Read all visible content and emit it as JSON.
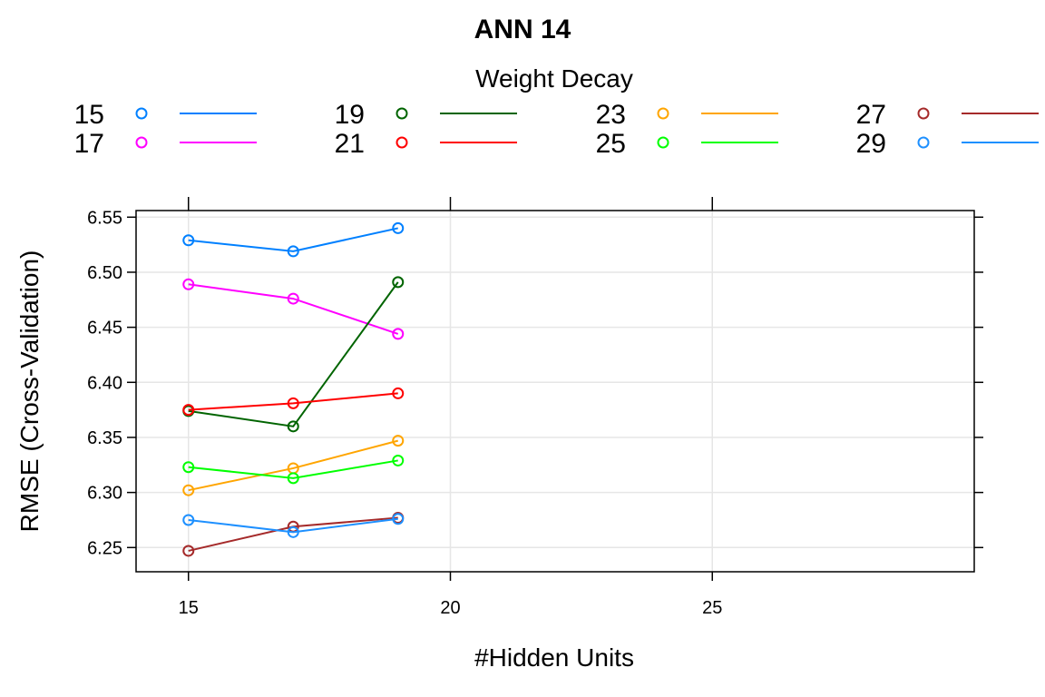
{
  "chart_data": {
    "type": "line",
    "title": "ANN 14",
    "xlabel": "#Hidden Units",
    "ylabel": "RMSE (Cross-Validation)",
    "legend_title": "Weight Decay",
    "legend_position": "top",
    "grid": true,
    "xlim": [
      14,
      30
    ],
    "ylim": [
      6.228,
      6.556
    ],
    "x_ticks": [
      "15",
      "20",
      "25"
    ],
    "y_ticks": [
      "6.25",
      "6.30",
      "6.35",
      "6.40",
      "6.45",
      "6.50",
      "6.55"
    ],
    "x": [
      15,
      17,
      19
    ],
    "series": [
      {
        "name": "15",
        "color": "#0080ff",
        "values": [
          6.529,
          6.519,
          6.54
        ]
      },
      {
        "name": "17",
        "color": "#ff00ff",
        "values": [
          6.489,
          6.476,
          6.444
        ]
      },
      {
        "name": "19",
        "color": "#006400",
        "values": [
          6.374,
          6.36,
          6.491
        ]
      },
      {
        "name": "21",
        "color": "#ff0000",
        "values": [
          6.375,
          6.381,
          6.39
        ]
      },
      {
        "name": "23",
        "color": "#ffa500",
        "values": [
          6.302,
          6.322,
          6.347
        ]
      },
      {
        "name": "25",
        "color": "#00ff00",
        "values": [
          6.323,
          6.313,
          6.329
        ]
      },
      {
        "name": "27",
        "color": "#a52a2a",
        "values": [
          6.247,
          6.269,
          6.277
        ]
      },
      {
        "name": "29",
        "color": "#1e90ff",
        "values": [
          6.275,
          6.264,
          6.276
        ]
      }
    ]
  }
}
